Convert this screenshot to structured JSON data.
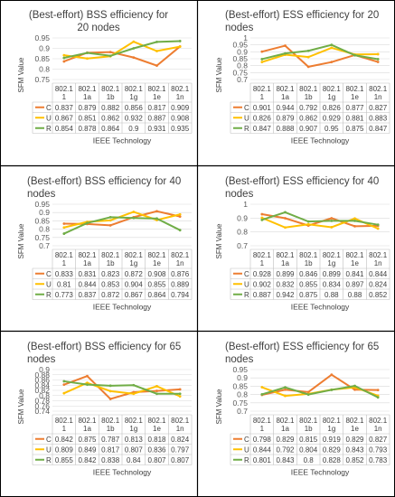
{
  "chart_data": [
    {
      "type": "line",
      "title": "(Best-effort) BSS efficiency for 20 nodes",
      "ylabel": "SFM Value",
      "xlabel": "IEEE Technology",
      "ylim": [
        0.75,
        0.95
      ],
      "yticks": [
        "0.95",
        "0.9",
        "0.85",
        "0.8",
        "0.75"
      ],
      "categories": [
        [
          "802.1",
          "1"
        ],
        [
          "802.1",
          "1a"
        ],
        [
          "802.1",
          "1b"
        ],
        [
          "802.1",
          "1g"
        ],
        [
          "802.1",
          "1e"
        ],
        [
          "802.1",
          "1n"
        ]
      ],
      "series": [
        {
          "name": "C",
          "color": "#ED7D31",
          "labels": [
            "0.837",
            "0.879",
            "0.882",
            "0.856",
            "0.817",
            "0.909"
          ],
          "values": [
            0.837,
            0.879,
            0.882,
            0.856,
            0.817,
            0.909
          ]
        },
        {
          "name": "U",
          "color": "#FFC000",
          "labels": [
            "0.867",
            "0.851",
            "0.862",
            "0.932",
            "0.887",
            "0.908"
          ],
          "values": [
            0.867,
            0.851,
            0.862,
            0.932,
            0.887,
            0.908
          ]
        },
        {
          "name": "R",
          "color": "#70AD47",
          "labels": [
            "0.854",
            "0.878",
            "0.864",
            "0.9",
            "0.931",
            "0.935"
          ],
          "values": [
            0.854,
            0.878,
            0.864,
            0.9,
            0.931,
            0.935
          ]
        }
      ]
    },
    {
      "type": "line",
      "title": "(Best-effort) ESS efficiency for 20 nodes",
      "ylabel": "SFM Value",
      "xlabel": "IEEE Technology",
      "ylim": [
        0.7,
        1.0
      ],
      "yticks": [
        "1",
        "0.95",
        "0.9",
        "0.85",
        "0.8",
        "0.75",
        "0.7"
      ],
      "categories": [
        [
          "802.1",
          "1"
        ],
        [
          "802.1",
          "1a"
        ],
        [
          "802.1",
          "1b"
        ],
        [
          "802.1",
          "1g"
        ],
        [
          "802.1",
          "1e"
        ],
        [
          "802.1",
          "1n"
        ]
      ],
      "series": [
        {
          "name": "C",
          "color": "#ED7D31",
          "labels": [
            "0.901",
            "0.944",
            "0.792",
            "0.826",
            "0.877",
            "0.827"
          ],
          "values": [
            0.901,
            0.944,
            0.792,
            0.826,
            0.877,
            0.827
          ]
        },
        {
          "name": "U",
          "color": "#FFC000",
          "labels": [
            "0.826",
            "0.879",
            "0.862",
            "0.929",
            "0.881",
            "0.883"
          ],
          "values": [
            0.826,
            0.879,
            0.862,
            0.929,
            0.881,
            0.883
          ]
        },
        {
          "name": "R",
          "color": "#70AD47",
          "labels": [
            "0.847",
            "0.888",
            "0.907",
            "0.95",
            "0.875",
            "0.847"
          ],
          "values": [
            0.847,
            0.888,
            0.907,
            0.95,
            0.875,
            0.847
          ]
        }
      ]
    },
    {
      "type": "line",
      "title": "(Best-effort) BSS efficiency for 40 nodes",
      "ylabel": "SFM Value",
      "xlabel": "IEEE Technology",
      "ylim": [
        0.7,
        0.95
      ],
      "yticks": [
        "0.95",
        "0.9",
        "0.85",
        "0.8",
        "0.75",
        "0.7"
      ],
      "categories": [
        [
          "802.1",
          "1"
        ],
        [
          "802.1",
          "1a"
        ],
        [
          "802.1",
          "1b"
        ],
        [
          "802.1",
          "1g"
        ],
        [
          "802.1",
          "1e"
        ],
        [
          "802.1",
          "1n"
        ]
      ],
      "series": [
        {
          "name": "C",
          "color": "#ED7D31",
          "labels": [
            "0.833",
            "0.831",
            "0.823",
            "0.872",
            "0.908",
            "0.876"
          ],
          "values": [
            0.833,
            0.831,
            0.823,
            0.872,
            0.908,
            0.876
          ]
        },
        {
          "name": "U",
          "color": "#FFC000",
          "labels": [
            "0.81",
            "0.844",
            "0.853",
            "0.904",
            "0.855",
            "0.889"
          ],
          "values": [
            0.81,
            0.844,
            0.853,
            0.904,
            0.855,
            0.889
          ]
        },
        {
          "name": "R",
          "color": "#70AD47",
          "labels": [
            "0.773",
            "0.837",
            "0.872",
            "0.867",
            "0.864",
            "0.794"
          ],
          "values": [
            0.773,
            0.837,
            0.872,
            0.867,
            0.864,
            0.794
          ]
        }
      ]
    },
    {
      "type": "line",
      "title": "(Best-effort) ESS efficiency for 40 nodes",
      "ylabel": "SFM Value",
      "xlabel": "IEEE Technology",
      "ylim": [
        0.7,
        1.0
      ],
      "yticks": [
        "1",
        "0.9",
        "0.8",
        "0.7"
      ],
      "categories": [
        [
          "802.1",
          "1"
        ],
        [
          "802.1",
          "1a"
        ],
        [
          "802.1",
          "1b"
        ],
        [
          "802.1",
          "1g"
        ],
        [
          "802.1",
          "1e"
        ],
        [
          "802.1",
          "1n"
        ]
      ],
      "series": [
        {
          "name": "C",
          "color": "#ED7D31",
          "labels": [
            "0.928",
            "0.899",
            "0.846",
            "0.899",
            "0.841",
            "0.844"
          ],
          "values": [
            0.928,
            0.899,
            0.846,
            0.899,
            0.841,
            0.844
          ]
        },
        {
          "name": "U",
          "color": "#FFC000",
          "labels": [
            "0.902",
            "0.832",
            "0.855",
            "0.834",
            "0.897",
            "0.824"
          ],
          "values": [
            0.902,
            0.832,
            0.855,
            0.834,
            0.897,
            0.824
          ]
        },
        {
          "name": "R",
          "color": "#70AD47",
          "labels": [
            "0.887",
            "0.942",
            "0.875",
            "0.88",
            "0.88",
            "0.852"
          ],
          "values": [
            0.887,
            0.942,
            0.875,
            0.88,
            0.88,
            0.852
          ]
        }
      ]
    },
    {
      "type": "line",
      "title": "(Best-effort) BSS efficiency for 65 nodes",
      "ylabel": "SFM Value",
      "xlabel": "IEEE Technology",
      "ylim": [
        0.74,
        0.9
      ],
      "yticks": [
        "0.9",
        "0.88",
        "0.86",
        "0.84",
        "0.82",
        "0.8",
        "0.78",
        "0.76",
        "0.74"
      ],
      "categories": [
        [
          "802.1",
          "1"
        ],
        [
          "802.1",
          "1a"
        ],
        [
          "802.1",
          "1b"
        ],
        [
          "802.1",
          "1g"
        ],
        [
          "802.1",
          "1e"
        ],
        [
          "802.1",
          "1n"
        ]
      ],
      "series": [
        {
          "name": "C",
          "color": "#ED7D31",
          "labels": [
            "0.842",
            "0.875",
            "0.787",
            "0.813",
            "0.818",
            "0.824"
          ],
          "values": [
            0.842,
            0.875,
            0.787,
            0.813,
            0.818,
            0.824
          ]
        },
        {
          "name": "U",
          "color": "#FFC000",
          "labels": [
            "0.809",
            "0.849",
            "0.817",
            "0.807",
            "0.836",
            "0.797"
          ],
          "values": [
            0.809,
            0.849,
            0.817,
            0.807,
            0.836,
            0.797
          ]
        },
        {
          "name": "R",
          "color": "#70AD47",
          "labels": [
            "0.855",
            "0.842",
            "0.838",
            "0.84",
            "0.807",
            "0.807"
          ],
          "values": [
            0.855,
            0.842,
            0.838,
            0.84,
            0.807,
            0.807
          ]
        }
      ]
    },
    {
      "type": "line",
      "title": "(Best-effort) ESS efficiency for 65 nodes",
      "ylabel": "SFM Value",
      "xlabel": "IEEE Technology",
      "ylim": [
        0.7,
        0.95
      ],
      "yticks": [
        "0.95",
        "0.9",
        "0.85",
        "0.8",
        "0.75",
        "0.7"
      ],
      "categories": [
        [
          "802.1",
          "1"
        ],
        [
          "802.1",
          "1a"
        ],
        [
          "802.1",
          "1b"
        ],
        [
          "802.1",
          "1g"
        ],
        [
          "802.1",
          "1e"
        ],
        [
          "802.1",
          "1n"
        ]
      ],
      "series": [
        {
          "name": "C",
          "color": "#ED7D31",
          "labels": [
            "0.798",
            "0.829",
            "0.815",
            "0.919",
            "0.829",
            "0.827"
          ],
          "values": [
            0.798,
            0.829,
            0.815,
            0.919,
            0.829,
            0.827
          ]
        },
        {
          "name": "U",
          "color": "#FFC000",
          "labels": [
            "0.844",
            "0.792",
            "0.804",
            "0.829",
            "0.843",
            "0.793"
          ],
          "values": [
            0.844,
            0.792,
            0.804,
            0.829,
            0.843,
            0.793
          ]
        },
        {
          "name": "R",
          "color": "#70AD47",
          "labels": [
            "0.801",
            "0.843",
            "0.8",
            "0.828",
            "0.852",
            "0.783"
          ],
          "values": [
            0.801,
            0.843,
            0.8,
            0.828,
            0.852,
            0.783
          ]
        }
      ]
    }
  ]
}
